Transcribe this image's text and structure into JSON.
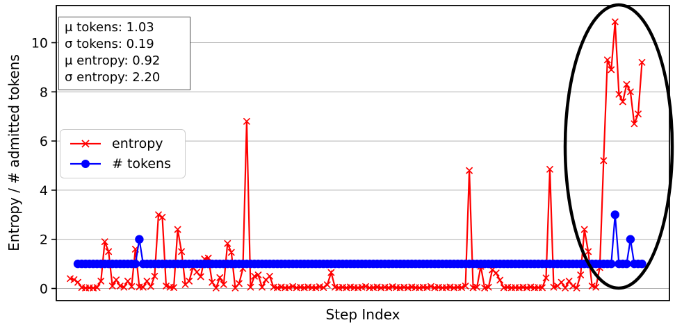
{
  "chart_data": {
    "type": "line",
    "title": "",
    "xlabel": "Step Index",
    "ylabel": "Entropy / # admitted tokens",
    "yticks": [
      0,
      2,
      4,
      6,
      8,
      10
    ],
    "ylim": [
      -0.5,
      11.5
    ],
    "xlim": [
      0,
      149
    ],
    "grid": "horizontal",
    "background": "#ffffff",
    "grid_color": "#b0b0b0",
    "stats_box": {
      "lines": [
        "μ tokens: 1.03",
        "σ tokens: 0.19",
        "μ entropy: 0.92",
        "σ entropy: 2.20"
      ]
    },
    "legend": {
      "position": "center-left",
      "entries": [
        {
          "label": "entropy",
          "color": "#ff0000",
          "marker": "x"
        },
        {
          "label": "# tokens",
          "color": "#0000ff",
          "marker": "circle"
        }
      ]
    },
    "annotation": {
      "type": "ellipse",
      "color": "#000000",
      "linewidth": 4.5,
      "region": "final high-entropy spike cluster at right side of plot"
    },
    "series": [
      {
        "name": "entropy",
        "color": "#ff0000",
        "marker": "x",
        "values": [
          0.4,
          0.36,
          0.25,
          0.04,
          0.02,
          0.03,
          0.02,
          0.04,
          0.3,
          1.9,
          1.5,
          0.1,
          0.35,
          0.1,
          0.05,
          0.3,
          0.08,
          1.6,
          0.06,
          0.05,
          0.3,
          0.08,
          0.5,
          3.0,
          2.9,
          0.1,
          0.05,
          0.04,
          2.4,
          1.5,
          0.16,
          0.3,
          0.86,
          0.67,
          0.48,
          1.2,
          1.24,
          0.25,
          0.02,
          0.44,
          0.16,
          1.83,
          1.47,
          0.02,
          0.2,
          0.81,
          6.8,
          0.05,
          0.5,
          0.55,
          0.05,
          0.35,
          0.5,
          0.05,
          0.03,
          0.06,
          0.03,
          0.04,
          0.08,
          0.03,
          0.05,
          0.03,
          0.06,
          0.04,
          0.03,
          0.07,
          0.04,
          0.15,
          0.65,
          0.05,
          0.03,
          0.05,
          0.03,
          0.06,
          0.04,
          0.03,
          0.05,
          0.08,
          0.03,
          0.04,
          0.06,
          0.03,
          0.05,
          0.03,
          0.07,
          0.04,
          0.03,
          0.05,
          0.03,
          0.06,
          0.04,
          0.03,
          0.05,
          0.04,
          0.08,
          0.03,
          0.05,
          0.03,
          0.04,
          0.06,
          0.03,
          0.05,
          0.04,
          0.1,
          4.8,
          0.03,
          0.05,
          0.9,
          0.02,
          0.05,
          0.76,
          0.63,
          0.34,
          0.03,
          0.05,
          0.03,
          0.04,
          0.03,
          0.05,
          0.03,
          0.06,
          0.03,
          0.04,
          0.03,
          0.43,
          4.85,
          0.05,
          0.1,
          0.25,
          0.02,
          0.3,
          0.1,
          0.02,
          0.55,
          2.4,
          1.5,
          0.1,
          0.05,
          0.85,
          5.2,
          9.3,
          8.9,
          10.85,
          7.9,
          7.6,
          8.3,
          8.0,
          6.7,
          7.1,
          9.2
        ]
      },
      {
        "name": "# tokens",
        "color": "#0000ff",
        "marker": "circle",
        "values": [
          null,
          null,
          1,
          1,
          1,
          1,
          1,
          1,
          1,
          1,
          1,
          1,
          1,
          1,
          1,
          1,
          1,
          1,
          2,
          1,
          1,
          1,
          1,
          1,
          1,
          1,
          1,
          1,
          1,
          1,
          1,
          1,
          1,
          1,
          1,
          1,
          1,
          1,
          1,
          1,
          1,
          1,
          1,
          1,
          1,
          1,
          1,
          1,
          1,
          1,
          1,
          1,
          1,
          1,
          1,
          1,
          1,
          1,
          1,
          1,
          1,
          1,
          1,
          1,
          1,
          1,
          1,
          1,
          1,
          1,
          1,
          1,
          1,
          1,
          1,
          1,
          1,
          1,
          1,
          1,
          1,
          1,
          1,
          1,
          1,
          1,
          1,
          1,
          1,
          1,
          1,
          1,
          1,
          1,
          1,
          1,
          1,
          1,
          1,
          1,
          1,
          1,
          1,
          1,
          1,
          1,
          1,
          1,
          1,
          1,
          1,
          1,
          1,
          1,
          1,
          1,
          1,
          1,
          1,
          1,
          1,
          1,
          1,
          1,
          1,
          1,
          1,
          1,
          1,
          1,
          1,
          1,
          1,
          1,
          1,
          1,
          1,
          1,
          1,
          1,
          1,
          1,
          3,
          1,
          1,
          1,
          2,
          1,
          1,
          1
        ]
      }
    ]
  }
}
